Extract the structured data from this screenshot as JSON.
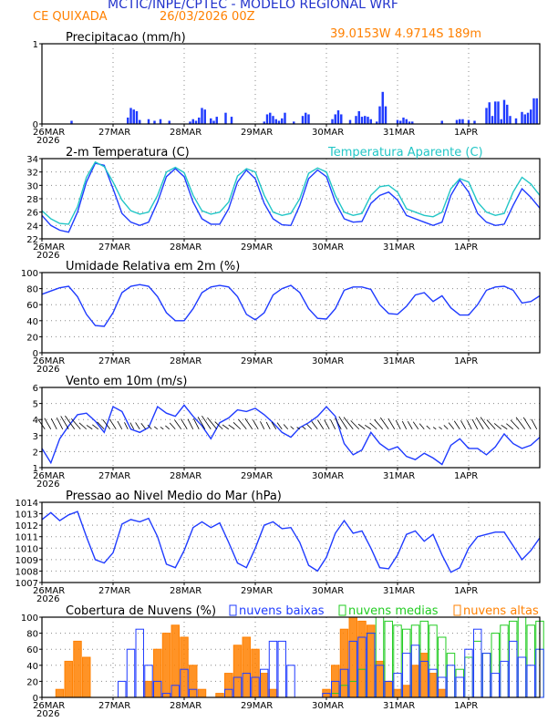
{
  "header": {
    "title": "MCTIC/INPE/CPTEC - MODELO REGIONAL WRF",
    "location": "CE QUIXADA",
    "run": "26/03/2026 00Z",
    "coords": "39.0153W 4.9714S 189m",
    "colors": {
      "title": "#2233cc",
      "subtitle": "#ff8000"
    }
  },
  "x_axis": {
    "ticks": [
      "26MAR",
      "27MAR",
      "28MAR",
      "29MAR",
      "30MAR",
      "31MAR",
      "1APR"
    ],
    "year": "2026",
    "hours_total": 168,
    "tick_every_hours": 24
  },
  "chart_data": [
    {
      "id": "precip",
      "type": "bar",
      "title": "Precipitacao (mm/h)",
      "ylim": [
        0,
        1
      ],
      "yticks": [
        0,
        1
      ],
      "color": "#1f3bff",
      "x_hours": [
        10,
        29,
        30,
        31,
        32,
        33,
        36,
        38,
        40,
        43,
        50,
        51,
        52,
        53,
        54,
        55,
        57,
        58,
        59,
        62,
        64,
        75,
        76,
        77,
        78,
        79,
        80,
        81,
        82,
        85,
        88,
        89,
        90,
        98,
        99,
        100,
        101,
        104,
        106,
        107,
        108,
        109,
        110,
        111,
        113,
        114,
        115,
        116,
        120,
        121,
        122,
        123,
        124,
        125,
        135,
        140,
        141,
        142,
        144,
        146,
        150,
        151,
        152,
        153,
        154,
        155,
        156,
        157,
        158,
        160,
        162,
        163,
        164,
        165,
        166,
        167
      ],
      "values": [
        0.04,
        0.08,
        0.2,
        0.18,
        0.16,
        0.05,
        0.06,
        0.04,
        0.06,
        0.04,
        0.03,
        0.06,
        0.04,
        0.08,
        0.2,
        0.18,
        0.07,
        0.04,
        0.09,
        0.14,
        0.09,
        0.03,
        0.12,
        0.14,
        0.1,
        0.06,
        0.04,
        0.07,
        0.14,
        0.03,
        0.1,
        0.14,
        0.12,
        0.06,
        0.12,
        0.17,
        0.12,
        0.05,
        0.1,
        0.16,
        0.09,
        0.1,
        0.09,
        0.06,
        0.03,
        0.22,
        0.4,
        0.22,
        0.05,
        0.04,
        0.08,
        0.06,
        0.03,
        0.03,
        0.04,
        0.05,
        0.06,
        0.06,
        0.05,
        0.04,
        0.2,
        0.27,
        0.1,
        0.28,
        0.28,
        0.06,
        0.3,
        0.24,
        0.1,
        0.07,
        0.15,
        0.12,
        0.14,
        0.18,
        0.32,
        0.32
      ]
    },
    {
      "id": "temp",
      "type": "line",
      "title": "2-m Temperatura (C)",
      "legend": "Temperatura Aparente (C)",
      "ylim": [
        22,
        34
      ],
      "yticks": [
        22,
        24,
        26,
        28,
        30,
        32,
        34
      ],
      "series": [
        {
          "name": "2-m Temperatura (C)",
          "color": "#1f3bff",
          "x_hours": [
            0,
            3,
            6,
            9,
            12,
            15,
            18,
            21,
            24,
            27,
            30,
            33,
            36,
            39,
            42,
            45,
            48,
            51,
            54,
            57,
            60,
            63,
            66,
            69,
            72,
            75,
            78,
            81,
            84,
            87,
            90,
            93,
            96,
            99,
            102,
            105,
            108,
            111,
            114,
            117,
            120,
            123,
            126,
            129,
            132,
            135,
            138,
            141,
            144,
            147,
            150,
            153,
            156,
            159,
            162,
            165,
            168
          ],
          "values": [
            25.5,
            24,
            23.3,
            23,
            26,
            30.5,
            33.3,
            33,
            29.5,
            25.8,
            24.5,
            24,
            24.5,
            27.5,
            31.3,
            32.5,
            31.3,
            27.5,
            25,
            24.2,
            24.2,
            26.5,
            30.5,
            32.3,
            31,
            27.3,
            25,
            24.1,
            24,
            27,
            31,
            32.3,
            31.3,
            27.5,
            25,
            24.5,
            24.6,
            27.3,
            28.5,
            29,
            27.8,
            25.5,
            25,
            24.5,
            24,
            24.5,
            28.5,
            30.8,
            29,
            25.8,
            24.5,
            24,
            24.2,
            27,
            29.5,
            28.2,
            26.6
          ]
        },
        {
          "name": "Temperatura Aparente (C)",
          "color": "#22c6c6",
          "x_hours": [
            0,
            3,
            6,
            9,
            12,
            15,
            18,
            21,
            24,
            27,
            30,
            33,
            36,
            39,
            42,
            45,
            48,
            51,
            54,
            57,
            60,
            63,
            66,
            69,
            72,
            75,
            78,
            81,
            84,
            87,
            90,
            93,
            96,
            99,
            102,
            105,
            108,
            111,
            114,
            117,
            120,
            123,
            126,
            129,
            132,
            135,
            138,
            141,
            144,
            147,
            150,
            153,
            156,
            159,
            162,
            165,
            168
          ],
          "values": [
            26.2,
            25,
            24.3,
            24.2,
            26.8,
            31.2,
            33.5,
            32.8,
            30.5,
            27.8,
            26.2,
            25.7,
            26,
            28.5,
            32,
            32.7,
            31.9,
            28.5,
            26.2,
            25.7,
            26,
            27.5,
            31.4,
            32.5,
            32,
            28.5,
            26,
            25.5,
            25.8,
            28,
            31.8,
            32.6,
            32,
            28.5,
            26,
            25.5,
            25.8,
            28.5,
            29.8,
            30,
            29,
            26.5,
            26,
            25.5,
            25.3,
            26,
            29.5,
            31,
            30.5,
            27.5,
            26,
            25.5,
            25.8,
            29,
            31.2,
            30.2,
            28.5
          ]
        }
      ]
    },
    {
      "id": "rh",
      "type": "line",
      "title": "Umidade Relativa em 2m (%)",
      "ylim": [
        0,
        100
      ],
      "yticks": [
        0,
        20,
        40,
        60,
        80,
        100
      ],
      "color": "#1f3bff",
      "x_hours": [
        0,
        3,
        6,
        9,
        12,
        15,
        18,
        21,
        24,
        27,
        30,
        33,
        36,
        39,
        42,
        45,
        48,
        51,
        54,
        57,
        60,
        63,
        66,
        69,
        72,
        75,
        78,
        81,
        84,
        87,
        90,
        93,
        96,
        99,
        102,
        105,
        108,
        111,
        114,
        117,
        120,
        123,
        126,
        129,
        132,
        135,
        138,
        141,
        144,
        147,
        150,
        153,
        156,
        159,
        162,
        165,
        168
      ],
      "values": [
        73,
        77,
        81,
        83,
        70,
        48,
        34,
        33,
        50,
        75,
        83,
        85,
        83,
        70,
        50,
        40,
        40,
        55,
        75,
        82,
        84,
        82,
        70,
        48,
        41,
        50,
        72,
        80,
        84,
        75,
        55,
        43,
        42,
        55,
        78,
        82,
        82,
        79,
        60,
        49,
        48,
        58,
        72,
        75,
        64,
        71,
        56,
        47,
        47,
        60,
        78,
        82,
        83,
        78,
        62,
        64,
        71
      ]
    },
    {
      "id": "wind",
      "type": "line",
      "title": "Vento em 10m (m/s)",
      "ylim": [
        1,
        6
      ],
      "yticks": [
        1,
        2,
        3,
        4,
        5,
        6
      ],
      "color": "#1f3bff",
      "x_hours": [
        0,
        3,
        6,
        9,
        12,
        15,
        18,
        21,
        24,
        27,
        30,
        33,
        36,
        39,
        42,
        45,
        48,
        51,
        54,
        57,
        60,
        63,
        66,
        69,
        72,
        75,
        78,
        81,
        84,
        87,
        90,
        93,
        96,
        99,
        102,
        105,
        108,
        111,
        114,
        117,
        120,
        123,
        126,
        129,
        132,
        135,
        138,
        141,
        144,
        147,
        150,
        153,
        156,
        159,
        162,
        165,
        168
      ],
      "values": [
        2.2,
        1.3,
        2.8,
        3.6,
        4.3,
        4.4,
        3.9,
        3.2,
        4.8,
        4.5,
        3.4,
        3.2,
        3.5,
        4.8,
        4.4,
        4.2,
        4.9,
        4.2,
        3.6,
        2.8,
        3.8,
        4.1,
        4.6,
        4.5,
        4.7,
        4.3,
        3.8,
        3.2,
        2.9,
        3.5,
        3.8,
        4.2,
        4.8,
        4.2,
        2.5,
        1.8,
        2.1,
        3.2,
        2.5,
        2.1,
        2.3,
        1.7,
        1.5,
        1.9,
        1.6,
        1.2,
        2.4,
        2.8,
        2.2,
        2.2,
        1.8,
        2.3,
        3.1,
        2.5,
        2.2,
        2.4,
        2.9
      ]
    },
    {
      "id": "pressure",
      "type": "line",
      "title": "Pressao ao Nivel Medio do Mar (hPa)",
      "ylim": [
        1007,
        1014
      ],
      "yticks": [
        1007,
        1008,
        1009,
        1010,
        1011,
        1012,
        1013,
        1014
      ],
      "color": "#1f3bff",
      "x_hours": [
        0,
        3,
        6,
        9,
        12,
        15,
        18,
        21,
        24,
        27,
        30,
        33,
        36,
        39,
        42,
        45,
        48,
        51,
        54,
        57,
        60,
        63,
        66,
        69,
        72,
        75,
        78,
        81,
        84,
        87,
        90,
        93,
        96,
        99,
        102,
        105,
        108,
        111,
        114,
        117,
        120,
        123,
        126,
        129,
        132,
        135,
        138,
        141,
        144,
        147,
        150,
        153,
        156,
        159,
        162,
        165,
        168
      ],
      "values": [
        1012.5,
        1013.1,
        1012.4,
        1012.9,
        1013.2,
        1011,
        1009,
        1008.7,
        1009.6,
        1012.1,
        1012.5,
        1012.3,
        1012.6,
        1011,
        1008.6,
        1008.3,
        1009.8,
        1011.8,
        1012.3,
        1011.8,
        1012.2,
        1010.5,
        1008.7,
        1008.3,
        1010,
        1012,
        1012.3,
        1011.7,
        1011.8,
        1010.5,
        1008.5,
        1008,
        1009.2,
        1011.3,
        1012.4,
        1011.3,
        1011.5,
        1010,
        1008.3,
        1008.2,
        1009.4,
        1011.2,
        1011.5,
        1010.6,
        1011.2,
        1009.4,
        1007.9,
        1008.3,
        1010,
        1011,
        1011.2,
        1011.4,
        1011.4,
        1010.2,
        1009,
        1009.8,
        1010.9
      ]
    },
    {
      "id": "clouds",
      "type": "bar",
      "title": "Cobertura de Nuvens (%)",
      "ylim": [
        0,
        100
      ],
      "yticks": [
        0,
        20,
        40,
        60,
        80,
        100
      ],
      "x_hours": [
        0,
        3,
        6,
        9,
        12,
        15,
        18,
        21,
        24,
        27,
        30,
        33,
        36,
        39,
        42,
        45,
        48,
        51,
        54,
        57,
        60,
        63,
        66,
        69,
        72,
        75,
        78,
        81,
        84,
        87,
        90,
        93,
        96,
        99,
        102,
        105,
        108,
        111,
        114,
        117,
        120,
        123,
        126,
        129,
        132,
        135,
        138,
        141,
        144,
        147,
        150,
        153,
        156,
        159,
        162,
        165,
        168
      ],
      "series": [
        {
          "name": "nuvens baixas",
          "color": "#1f3bff",
          "values": [
            0,
            0,
            0,
            0,
            0,
            0,
            0,
            0,
            0,
            20,
            60,
            85,
            40,
            20,
            5,
            15,
            35,
            10,
            0,
            0,
            0,
            10,
            25,
            30,
            25,
            35,
            70,
            70,
            40,
            0,
            0,
            0,
            5,
            20,
            35,
            70,
            75,
            80,
            40,
            20,
            30,
            55,
            65,
            45,
            35,
            25,
            40,
            25,
            60,
            85,
            55,
            30,
            45,
            70,
            50,
            40,
            60
          ]
        },
        {
          "name": "nuvens medias",
          "color": "#22cc22",
          "values": [
            0,
            0,
            0,
            0,
            0,
            0,
            0,
            0,
            0,
            0,
            0,
            0,
            0,
            0,
            0,
            0,
            0,
            0,
            0,
            0,
            0,
            0,
            0,
            0,
            0,
            0,
            0,
            0,
            0,
            0,
            0,
            0,
            0,
            5,
            15,
            20,
            35,
            80,
            100,
            95,
            90,
            85,
            90,
            95,
            90,
            75,
            55,
            35,
            50,
            70,
            55,
            80,
            90,
            95,
            100,
            90,
            95
          ]
        },
        {
          "name": "nuvens altas",
          "color": "#ff8000",
          "values": [
            0,
            0,
            10,
            45,
            70,
            50,
            0,
            0,
            0,
            0,
            0,
            0,
            20,
            60,
            80,
            90,
            75,
            40,
            10,
            0,
            5,
            30,
            65,
            75,
            60,
            30,
            10,
            0,
            0,
            0,
            0,
            0,
            10,
            40,
            85,
            100,
            95,
            90,
            45,
            20,
            10,
            15,
            40,
            55,
            30,
            10,
            0,
            0,
            0,
            0,
            0,
            0,
            0,
            0,
            0,
            0,
            0
          ]
        }
      ]
    }
  ]
}
